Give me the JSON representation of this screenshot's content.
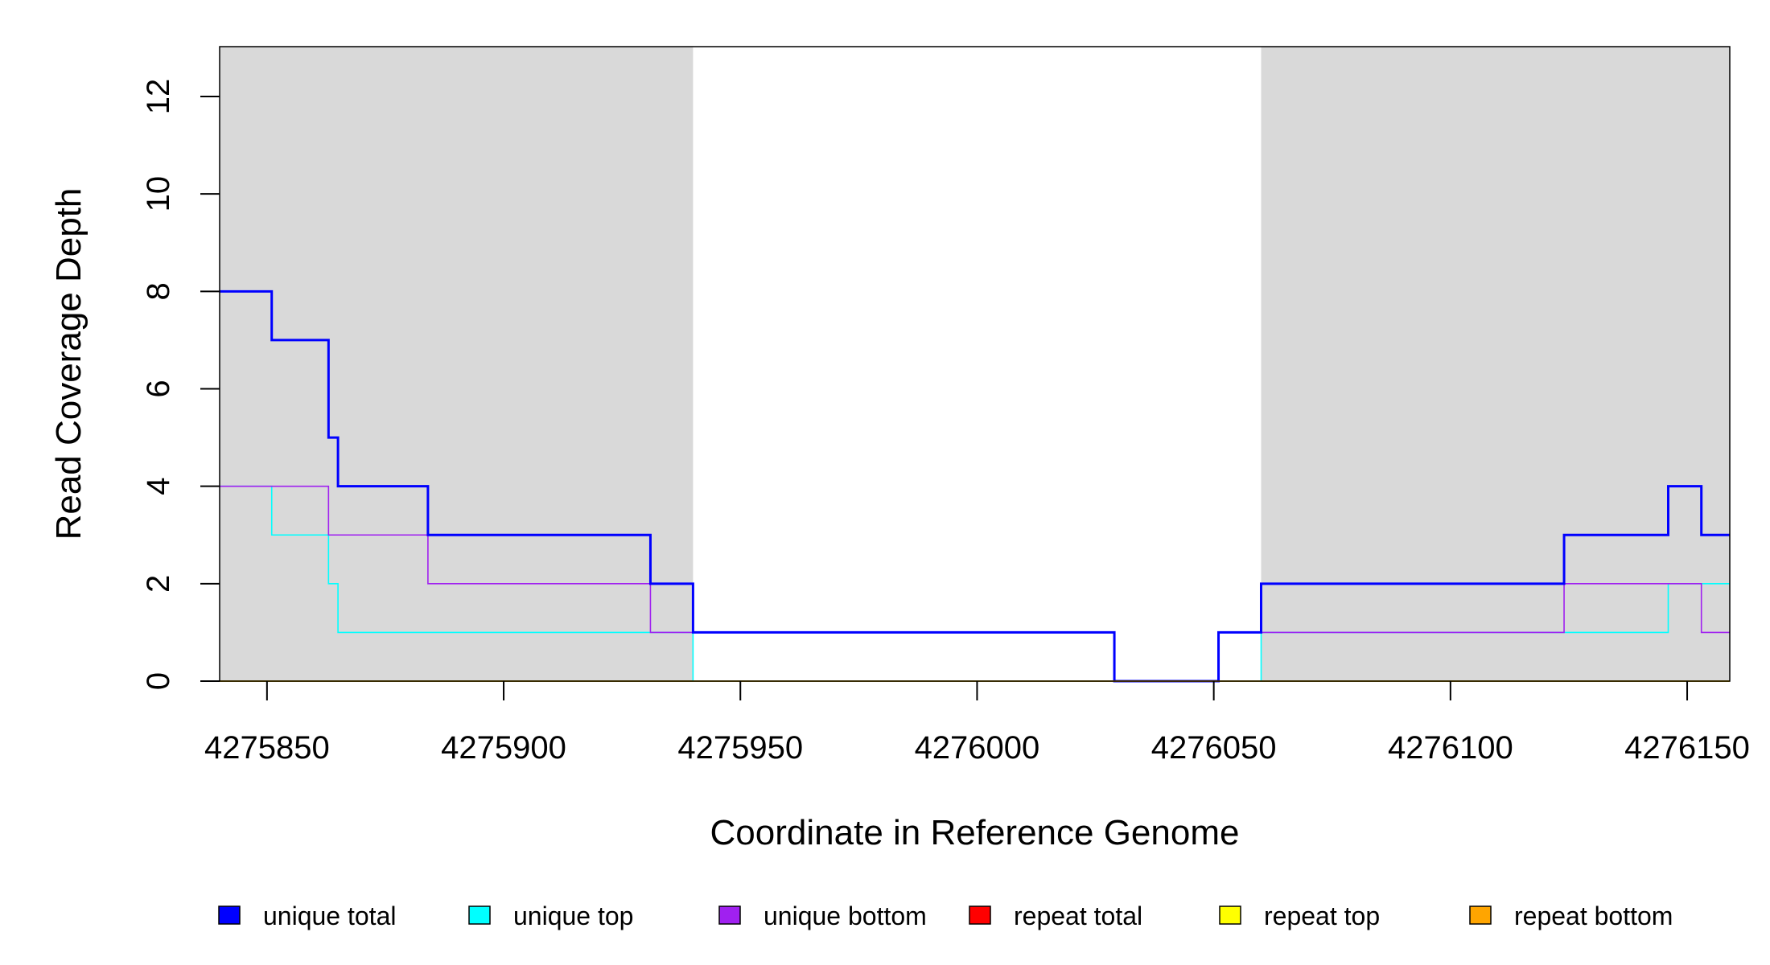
{
  "chart_data": {
    "type": "line",
    "step": true,
    "xlabel": "Coordinate in Reference Genome",
    "ylabel": "Read Coverage Depth",
    "xlim": [
      4275840,
      4276159
    ],
    "ylim": [
      0,
      13
    ],
    "x_ticks": [
      4275850,
      4275900,
      4275950,
      4276000,
      4276050,
      4276100,
      4276150
    ],
    "y_ticks": [
      0,
      2,
      4,
      6,
      8,
      10,
      12
    ],
    "shaded_regions": [
      {
        "from": 4275840,
        "to": 4275940,
        "color": "#d9d9d9"
      },
      {
        "from": 4276060,
        "to": 4276159,
        "color": "#d9d9d9"
      }
    ],
    "series": [
      {
        "name": "unique top",
        "color": "#00ffff",
        "points": [
          [
            4275840,
            4
          ],
          [
            4275851,
            3
          ],
          [
            4275863,
            2
          ],
          [
            4275865,
            1
          ],
          [
            4275940,
            0
          ],
          [
            4276060,
            1
          ],
          [
            4276146,
            2
          ],
          [
            4276159,
            2
          ]
        ]
      },
      {
        "name": "unique bottom",
        "color": "#a020f0",
        "points": [
          [
            4275840,
            4
          ],
          [
            4275863,
            3
          ],
          [
            4275884,
            2
          ],
          [
            4275931,
            1
          ],
          [
            4276029,
            0
          ],
          [
            4276051,
            1
          ],
          [
            4276124,
            2
          ],
          [
            4276153,
            1
          ],
          [
            4276159,
            1
          ]
        ]
      },
      {
        "name": "unique total",
        "color": "#0000ff",
        "points": [
          [
            4275840,
            8
          ],
          [
            4275851,
            7
          ],
          [
            4275863,
            5
          ],
          [
            4275865,
            4
          ],
          [
            4275884,
            3
          ],
          [
            4275931,
            2
          ],
          [
            4275940,
            1
          ],
          [
            4276029,
            0
          ],
          [
            4276051,
            1
          ],
          [
            4276060,
            2
          ],
          [
            4276124,
            3
          ],
          [
            4276146,
            4
          ],
          [
            4276153,
            3
          ],
          [
            4276159,
            3
          ]
        ]
      },
      {
        "name": "repeat total",
        "color": "#ff0000",
        "points": [
          [
            4275840,
            0
          ],
          [
            4276159,
            0
          ]
        ]
      },
      {
        "name": "repeat top",
        "color": "#ffff00",
        "points": [
          [
            4275840,
            0
          ],
          [
            4276159,
            0
          ]
        ]
      },
      {
        "name": "repeat bottom",
        "color": "#ffa500",
        "points": [
          [
            4275840,
            0
          ],
          [
            4276159,
            0
          ]
        ]
      }
    ],
    "baseline_color": "#00cd00",
    "legend": {
      "placement": "bottom",
      "items": [
        {
          "label": "unique total",
          "color": "#0000ff"
        },
        {
          "label": "unique top",
          "color": "#00ffff"
        },
        {
          "label": "unique bottom",
          "color": "#a020f0"
        },
        {
          "label": "repeat total",
          "color": "#ff0000"
        },
        {
          "label": "repeat top",
          "color": "#ffff00"
        },
        {
          "label": "repeat bottom",
          "color": "#ffa500"
        }
      ]
    }
  }
}
